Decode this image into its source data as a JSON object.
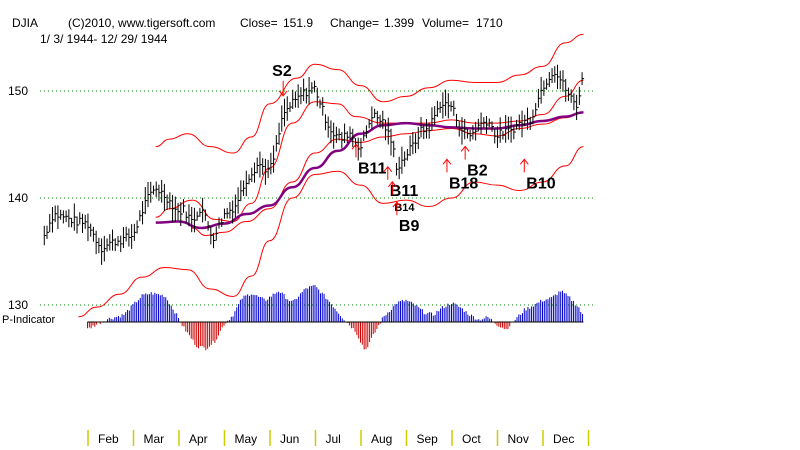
{
  "header": {
    "symbol": "DJIA",
    "copyright": "(C)2010, www.tigersoft.com",
    "close_label": "Close=",
    "close_value": "151.9",
    "change_label": "Change=",
    "change_value": "1.399",
    "volume_label": "Volume=",
    "volume_value": "1710",
    "date_range": "1/ 3/ 1944- 12/ 29/ 1944"
  },
  "indicator_label": "P-Indicator",
  "colors": {
    "price": "#000000",
    "band": "#ff0000",
    "ma": "#800080",
    "grid": "#008000",
    "positive": "#0000cc",
    "negative": "#cc0000",
    "signal_arrow": "#ff0000",
    "tick": "#cccc00"
  },
  "chart_data": {
    "type": "line",
    "title": "DJIA 1944",
    "x_unit": "month (1 = Jan start)",
    "ylim": [
      125,
      156
    ],
    "yticks": [
      130,
      140,
      150
    ],
    "months": [
      "Feb",
      "Mar",
      "Apr",
      "May",
      "Jun",
      "Jul",
      "Aug",
      "Sep",
      "Oct",
      "Nov",
      "Dec"
    ],
    "price": {
      "x": [
        1.05,
        1.25,
        1.5,
        1.75,
        2.0,
        2.1,
        2.3,
        2.5,
        2.75,
        3.0,
        3.1,
        3.3,
        3.5,
        3.75,
        4.0,
        4.1,
        4.3,
        4.5,
        4.75,
        5.0,
        5.25,
        5.5,
        5.75,
        6.0,
        6.1,
        6.3,
        6.5,
        6.75,
        7.0,
        7.25,
        7.4,
        7.6,
        7.75,
        8.0,
        8.25,
        8.5,
        8.7,
        8.8,
        9.0,
        9.2,
        9.3,
        9.5,
        9.75,
        10.0,
        10.2,
        10.4,
        10.6,
        10.8,
        11.0,
        11.1,
        11.3,
        11.5,
        11.75,
        12.0,
        12.25,
        12.4,
        12.6,
        12.75,
        12.9
      ],
      "values": [
        136.5,
        138.5,
        138.2,
        137.8,
        137.6,
        136.8,
        135.3,
        135.8,
        136.1,
        136.5,
        137.6,
        139.8,
        141.0,
        140.0,
        138.6,
        139.0,
        137.8,
        139.2,
        136.2,
        138.4,
        139.3,
        141.8,
        143.2,
        142.5,
        143.8,
        147.8,
        148.8,
        149.8,
        150.3,
        147.2,
        146.0,
        145.5,
        146.2,
        144.6,
        147.8,
        147.1,
        145.0,
        142.8,
        144.0,
        145.2,
        146.2,
        146.5,
        148.8,
        148.6,
        146.5,
        145.8,
        146.8,
        147.3,
        145.7,
        146.1,
        146.3,
        147.0,
        147.4,
        150.4,
        152.0,
        151.0,
        149.5,
        148.5,
        151.9
      ]
    },
    "upper_band": {
      "x": [
        3.5,
        3.8,
        4.2,
        4.7,
        5.2,
        5.6,
        6.0,
        6.6,
        7.0,
        7.5,
        8.0,
        8.5,
        9.0,
        9.5,
        10.0,
        10.5,
        11.0,
        11.5,
        12.0,
        12.5,
        12.9
      ],
      "values": [
        144.8,
        145.5,
        146.0,
        144.8,
        144.2,
        145.7,
        148.8,
        151.2,
        152.5,
        152.0,
        150.5,
        149.0,
        149.5,
        150.3,
        151.0,
        150.8,
        150.8,
        151.5,
        152.3,
        154.5,
        155.3
      ]
    },
    "inner_band_upper": {
      "x": [
        3.5,
        3.8,
        4.3,
        4.8,
        5.2,
        5.6,
        6.0,
        6.5,
        7.0,
        7.5,
        7.9,
        8.5,
        9.0,
        9.5,
        10.0,
        10.5,
        11.0,
        11.5,
        12.0,
        12.5,
        12.9
      ],
      "values": [
        138.2,
        139.0,
        139.8,
        138.0,
        137.8,
        139.5,
        142.8,
        147.0,
        149.0,
        148.8,
        147.6,
        147.0,
        147.0,
        147.0,
        147.3,
        147.0,
        147.0,
        147.2,
        147.8,
        149.5,
        151.0
      ]
    },
    "inner_band_lower": {
      "x": [
        4.3,
        4.6,
        5.0,
        5.5,
        6.0,
        6.5,
        7.0,
        7.5,
        8.0,
        8.5,
        9.0,
        9.5,
        10.0,
        10.5,
        11.0,
        11.5,
        12.0,
        12.5,
        12.9
      ],
      "values": [
        137.2,
        136.5,
        136.8,
        137.8,
        139.0,
        141.5,
        144.2,
        145.5,
        145.2,
        145.7,
        146.0,
        146.3,
        146.5,
        146.0,
        145.8,
        146.5,
        146.9,
        147.5,
        148.0
      ]
    },
    "lower_band": {
      "x": [
        1.8,
        2.2,
        2.7,
        3.2,
        3.7,
        4.2,
        4.7,
        5.2,
        5.6,
        6.0,
        6.5,
        7.0,
        7.5,
        8.0,
        8.5,
        9.0,
        9.5,
        10.0,
        10.5,
        11.0,
        11.5,
        12.0,
        12.5,
        12.9
      ],
      "values": [
        128.9,
        129.8,
        131.0,
        132.6,
        133.5,
        133.3,
        131.5,
        130.8,
        132.7,
        136.0,
        140.0,
        142.2,
        142.5,
        141.2,
        139.5,
        139.8,
        139.2,
        140.0,
        141.5,
        141.2,
        140.7,
        141.5,
        143.0,
        144.8
      ]
    },
    "moving_average": {
      "x": [
        3.5,
        4.0,
        4.5,
        5.0,
        5.5,
        6.0,
        6.5,
        7.0,
        7.5,
        8.0,
        8.5,
        9.0,
        9.5,
        10.0,
        10.5,
        11.0,
        11.5,
        12.0,
        12.5,
        12.9
      ],
      "values": [
        137.7,
        137.8,
        137.2,
        137.6,
        138.5,
        139.3,
        141.0,
        142.8,
        144.4,
        146.0,
        146.8,
        147.0,
        146.8,
        146.6,
        146.5,
        146.5,
        146.8,
        147.2,
        147.6,
        148.0
      ]
    },
    "p_indicator": {
      "x": [
        2.0,
        2.4,
        2.8,
        3.0,
        3.2,
        3.4,
        3.7,
        3.9,
        4.1,
        4.4,
        4.6,
        4.8,
        5.0,
        5.2,
        5.4,
        5.6,
        5.9,
        6.2,
        6.5,
        6.8,
        7.0,
        7.3,
        7.6,
        7.9,
        8.1,
        8.3,
        8.5,
        8.8,
        9.0,
        9.2,
        9.4,
        9.6,
        9.8,
        10.0,
        10.2,
        10.4,
        10.6,
        10.8,
        11.0,
        11.2,
        11.4,
        11.6,
        11.8,
        12.0,
        12.2,
        12.4,
        12.6,
        12.8,
        12.9
      ],
      "values": [
        -0.3,
        0.1,
        0.3,
        0.7,
        1.1,
        1.2,
        1.1,
        0.5,
        -0.2,
        -1.0,
        -1.1,
        -0.8,
        -0.1,
        0.3,
        1.0,
        1.2,
        0.9,
        1.3,
        0.8,
        1.4,
        1.5,
        0.9,
        0.2,
        -0.4,
        -1.2,
        -0.5,
        0.2,
        0.8,
        0.9,
        0.7,
        0.4,
        0.3,
        0.6,
        0.8,
        0.6,
        0.3,
        0.1,
        0.2,
        -0.1,
        -0.3,
        0.1,
        0.5,
        0.7,
        0.9,
        1.0,
        1.3,
        1.0,
        0.6,
        0.2
      ]
    },
    "signals": [
      {
        "label": "S2",
        "x": 6.3,
        "y": 148.9,
        "dir": "down"
      },
      {
        "label": "B11",
        "x": 7.9,
        "y": 143.8,
        "dir": "up"
      },
      {
        "label": "B11",
        "x": 8.6,
        "y": 141.7,
        "dir": "up"
      },
      {
        "label": "B14",
        "x": 8.7,
        "y": 140.3,
        "dir": "up"
      },
      {
        "label": "B9",
        "x": 8.8,
        "y": 138.4,
        "dir": "up"
      },
      {
        "label": "B18",
        "x": 9.9,
        "y": 142.4,
        "dir": "up"
      },
      {
        "label": "B2",
        "x": 10.3,
        "y": 143.6,
        "dir": "up"
      },
      {
        "label": "B10",
        "x": 11.6,
        "y": 142.4,
        "dir": "up"
      }
    ]
  }
}
